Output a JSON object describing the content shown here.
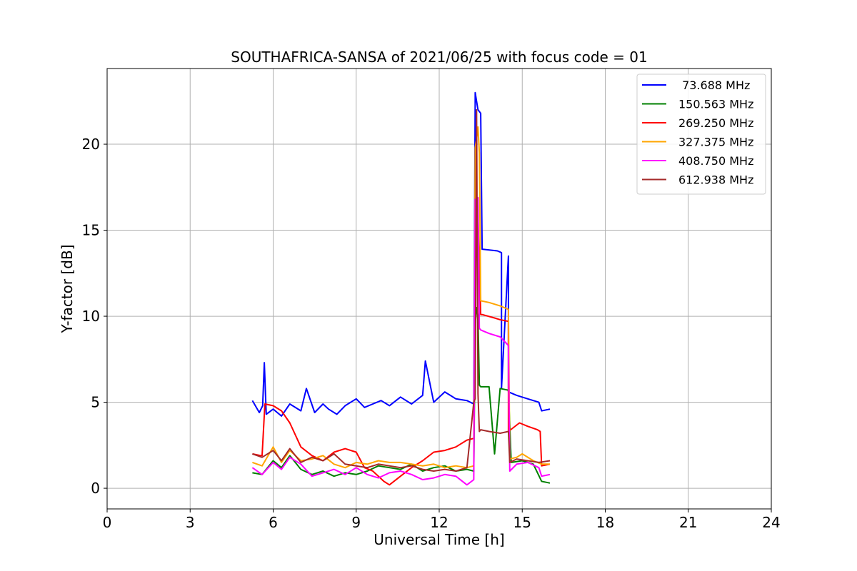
{
  "chart_data": {
    "type": "line",
    "title": "SOUTHAFRICA-SANSA of 2021/06/25 with focus code = 01",
    "xlabel": "Universal Time [h]",
    "ylabel": "Y-factor [dB]",
    "xlim": [
      0,
      24
    ],
    "ylim": [
      -1.2,
      24.4
    ],
    "xticks": [
      0,
      3,
      6,
      9,
      12,
      15,
      18,
      21,
      24
    ],
    "xtick_labels": [
      "0",
      "3",
      "6",
      "9",
      "12",
      "15",
      "18",
      "21",
      "24"
    ],
    "yticks": [
      0,
      5,
      10,
      15,
      20
    ],
    "ytick_labels": [
      "0",
      "5",
      "10",
      "15",
      "20"
    ],
    "grid": true,
    "legend_position": "top-right",
    "series": [
      {
        "name": " 73.688 MHz",
        "color": "#0000ff",
        "x": [
          5.25,
          5.5,
          5.62,
          5.68,
          5.75,
          6.0,
          6.3,
          6.6,
          7.0,
          7.2,
          7.5,
          7.8,
          8.0,
          8.3,
          8.6,
          9.0,
          9.3,
          9.6,
          9.9,
          10.2,
          10.6,
          11.0,
          11.4,
          11.5,
          11.8,
          12.2,
          12.6,
          13.0,
          13.25,
          13.3,
          13.35,
          13.4,
          13.5,
          13.55,
          13.55,
          14.1,
          14.25,
          14.25,
          14.5,
          14.5,
          14.8,
          15.2,
          15.6,
          15.7,
          16.0
        ],
        "y": [
          5.1,
          4.4,
          4.8,
          7.3,
          4.3,
          4.6,
          4.2,
          4.9,
          4.5,
          5.8,
          4.4,
          4.9,
          4.6,
          4.3,
          4.8,
          5.2,
          4.7,
          4.9,
          5.1,
          4.8,
          5.3,
          4.9,
          5.4,
          7.4,
          5.0,
          5.6,
          5.2,
          5.1,
          4.9,
          23.0,
          22.5,
          22.0,
          21.8,
          13.9,
          13.9,
          13.8,
          13.7,
          5.8,
          13.5,
          5.6,
          5.4,
          5.2,
          5.0,
          4.5,
          4.6
        ]
      },
      {
        "name": "150.563 MHz",
        "color": "#008000",
        "x": [
          5.25,
          5.6,
          6.0,
          6.3,
          6.6,
          7.0,
          7.4,
          7.8,
          8.2,
          8.6,
          9.0,
          9.4,
          9.8,
          10.2,
          10.6,
          11.0,
          11.4,
          11.8,
          12.2,
          12.6,
          13.0,
          13.25,
          13.3,
          13.35,
          13.4,
          13.45,
          13.5,
          13.8,
          14.0,
          14.2,
          14.5,
          14.6,
          15.0,
          15.4,
          15.7,
          16.0
        ],
        "y": [
          0.9,
          0.8,
          1.6,
          1.2,
          1.9,
          1.1,
          0.8,
          1.0,
          0.7,
          0.9,
          0.8,
          1.0,
          1.3,
          1.2,
          1.1,
          1.4,
          1.0,
          1.2,
          1.3,
          1.0,
          1.1,
          1.0,
          9.5,
          10.5,
          10.0,
          6.0,
          5.9,
          5.9,
          2.0,
          5.8,
          5.7,
          1.5,
          1.6,
          1.4,
          0.4,
          0.3
        ]
      },
      {
        "name": "269.250 MHz",
        "color": "#ff0000",
        "x": [
          5.25,
          5.55,
          5.6,
          5.7,
          6.0,
          6.3,
          6.6,
          7.0,
          7.4,
          7.8,
          8.2,
          8.6,
          9.0,
          9.3,
          9.6,
          10.0,
          10.2,
          10.6,
          11.0,
          11.4,
          11.8,
          12.2,
          12.6,
          13.0,
          13.25,
          13.3,
          13.35,
          13.4,
          13.5,
          13.55,
          13.55,
          14.0,
          14.2,
          14.5,
          14.5,
          14.9,
          15.2,
          15.55,
          15.65,
          15.7,
          16.0
        ],
        "y": [
          2.0,
          1.9,
          1.9,
          4.9,
          4.8,
          4.5,
          3.8,
          2.4,
          1.9,
          1.6,
          2.1,
          2.3,
          2.1,
          1.2,
          1.0,
          0.4,
          0.2,
          0.7,
          1.2,
          1.6,
          2.1,
          2.2,
          2.4,
          2.8,
          2.9,
          16.0,
          15.5,
          15.8,
          10.1,
          10.1,
          10.1,
          9.9,
          9.8,
          9.7,
          3.3,
          3.8,
          3.6,
          3.4,
          3.3,
          1.3,
          1.4
        ]
      },
      {
        "name": "327.375 MHz",
        "color": "#ffa500",
        "x": [
          5.25,
          5.6,
          6.0,
          6.3,
          6.6,
          7.0,
          7.4,
          7.8,
          8.2,
          8.6,
          9.0,
          9.4,
          9.8,
          10.2,
          10.6,
          11.0,
          11.4,
          11.8,
          12.2,
          12.6,
          13.0,
          13.25,
          13.3,
          13.35,
          13.4,
          13.45,
          13.5,
          13.8,
          14.2,
          14.5,
          14.55,
          14.8,
          15.0,
          15.4,
          15.7,
          16.0
        ],
        "y": [
          1.5,
          1.3,
          2.4,
          1.5,
          2.2,
          1.6,
          1.7,
          1.9,
          1.4,
          1.2,
          1.5,
          1.4,
          1.6,
          1.5,
          1.5,
          1.4,
          1.3,
          1.4,
          1.2,
          1.3,
          1.2,
          1.3,
          19.8,
          20.3,
          21.0,
          19.5,
          10.9,
          10.8,
          10.6,
          10.4,
          1.7,
          1.8,
          2.0,
          1.6,
          1.4,
          1.4
        ]
      },
      {
        "name": "408.750 MHz",
        "color": "#ff00ff",
        "x": [
          5.25,
          5.6,
          6.0,
          6.3,
          6.6,
          7.0,
          7.4,
          7.8,
          8.2,
          8.6,
          9.0,
          9.4,
          9.8,
          10.2,
          10.6,
          11.0,
          11.4,
          11.8,
          12.2,
          12.6,
          13.0,
          13.25,
          13.3,
          13.35,
          13.4,
          13.45,
          13.5,
          13.8,
          14.2,
          14.5,
          14.55,
          14.8,
          15.2,
          15.6,
          15.7,
          16.0
        ],
        "y": [
          1.2,
          0.8,
          1.5,
          1.1,
          1.8,
          1.4,
          0.7,
          0.9,
          1.1,
          0.8,
          1.2,
          0.8,
          0.6,
          0.9,
          1.0,
          0.8,
          0.5,
          0.6,
          0.8,
          0.7,
          0.2,
          0.5,
          16.8,
          16.4,
          16.9,
          9.3,
          9.2,
          9.0,
          8.8,
          8.3,
          1.0,
          1.4,
          1.5,
          1.2,
          0.7,
          0.8
        ]
      },
      {
        "name": "612.938 MHz",
        "color": "#a52a2a",
        "x": [
          5.25,
          5.6,
          6.0,
          6.3,
          6.6,
          7.0,
          7.4,
          7.8,
          8.2,
          8.6,
          9.0,
          9.4,
          9.8,
          10.2,
          10.6,
          11.0,
          11.4,
          11.8,
          12.2,
          12.6,
          13.0,
          13.25,
          13.3,
          13.35,
          13.4,
          13.45,
          13.5,
          13.8,
          14.2,
          14.5,
          14.55,
          14.8,
          15.2,
          15.6,
          16.0
        ],
        "y": [
          2.0,
          1.8,
          2.2,
          1.6,
          2.3,
          1.5,
          1.8,
          1.6,
          2.0,
          1.4,
          1.3,
          1.2,
          1.4,
          1.3,
          1.2,
          1.3,
          1.1,
          1.0,
          1.1,
          1.0,
          1.2,
          5.0,
          5.2,
          22.0,
          5.5,
          3.3,
          3.4,
          3.3,
          3.2,
          3.3,
          1.5,
          1.7,
          1.6,
          1.5,
          1.6
        ]
      }
    ]
  }
}
